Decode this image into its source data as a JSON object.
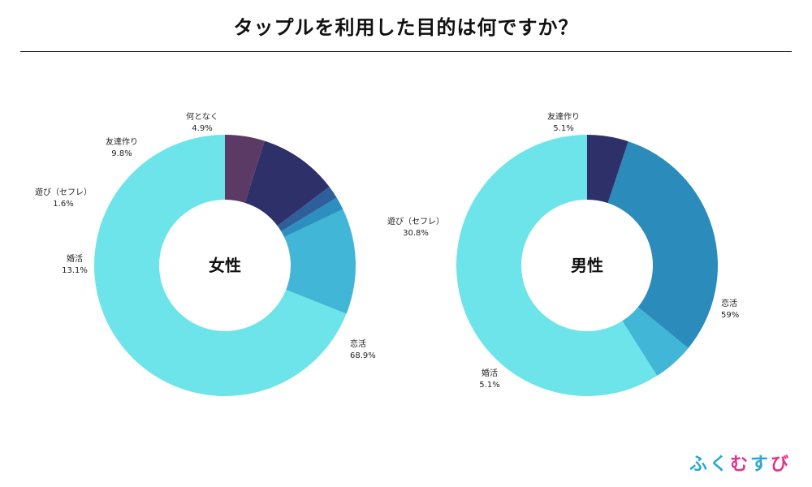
{
  "page": {
    "title": "タップルを利用した目的は何ですか？"
  },
  "brand": {
    "chars": [
      {
        "text": "ふ",
        "color": "#2aa6d8"
      },
      {
        "text": "く",
        "color": "#2aa6d8"
      },
      {
        "text": "む",
        "color": "#e4318a"
      },
      {
        "text": "す",
        "color": "#2aa6d8"
      },
      {
        "text": "び",
        "color": "#e4318a"
      }
    ]
  },
  "chart_data": [
    {
      "type": "pie",
      "center_label": "女性",
      "slices": [
        {
          "label": "恋活",
          "value": 68.9,
          "display": "68.9%",
          "color": "#6de4e9"
        },
        {
          "label": "婚活",
          "value": 13.1,
          "display": "13.1%",
          "color": "#42b6d6"
        },
        {
          "label": "",
          "value": 1.6,
          "display": "",
          "color": "#2b8fbf"
        },
        {
          "label": "遊び（セフレ）",
          "value": 1.6,
          "display": "1.6%",
          "color": "#2e5f9a"
        },
        {
          "label": "友達作り",
          "value": 9.8,
          "display": "9.8%",
          "color": "#2e306a"
        },
        {
          "label": "何となく",
          "value": 4.9,
          "display": "4.9%",
          "color": "#5c3a66"
        }
      ]
    },
    {
      "type": "pie",
      "center_label": "男性",
      "slices": [
        {
          "label": "恋活",
          "value": 59,
          "display": "59%",
          "color": "#6de4e9"
        },
        {
          "label": "婚活",
          "value": 5.1,
          "display": "5.1%",
          "color": "#42b6d6"
        },
        {
          "label": "遊び（セフレ）",
          "value": 30.8,
          "display": "30.8%",
          "color": "#2b8bbb"
        },
        {
          "label": "友達作り",
          "value": 5.1,
          "display": "5.1%",
          "color": "#2e306a"
        }
      ]
    }
  ]
}
